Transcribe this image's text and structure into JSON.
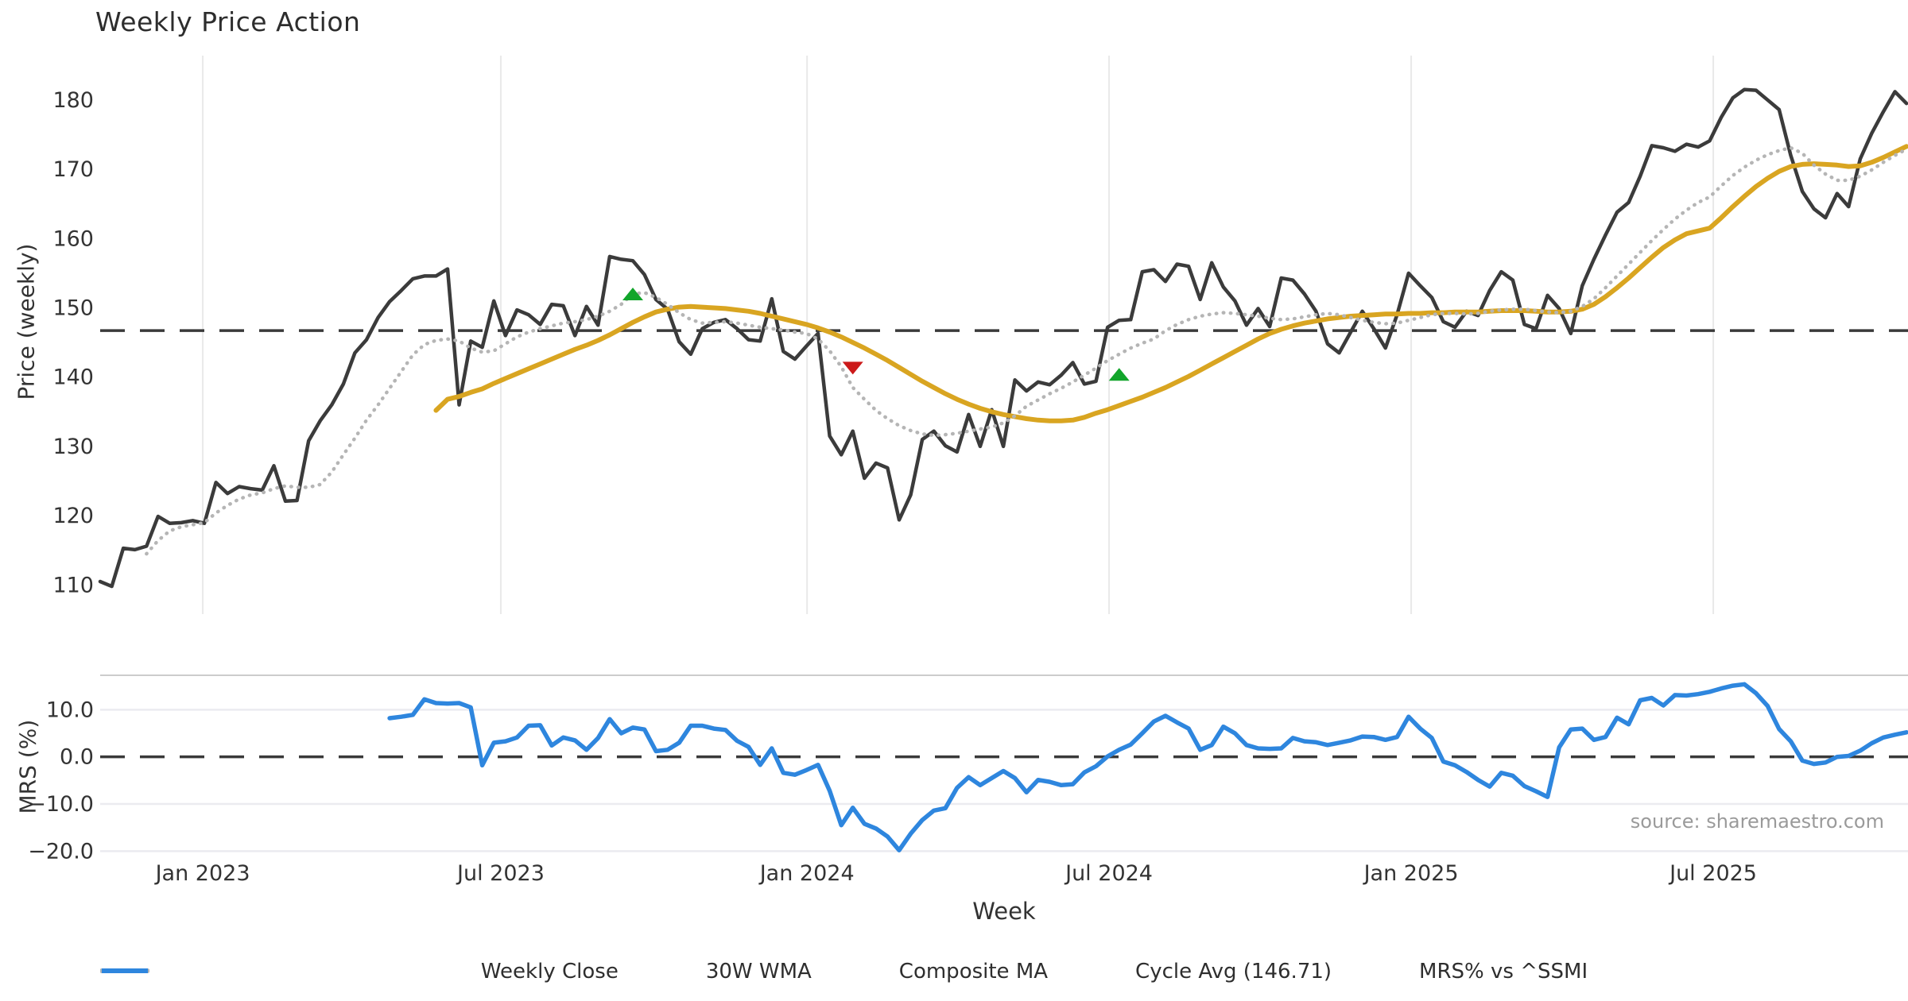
{
  "title": "Weekly Price Action",
  "source_text": "source: sharemaestro.com",
  "axes": {
    "price_axis_label": "Price (weekly)",
    "mrs_axis_label": "MRS (%)",
    "x_axis_label": "Week",
    "price_ticks": [
      110,
      120,
      130,
      140,
      150,
      160,
      170,
      180
    ],
    "mrs_ticks": [
      {
        "value": 10,
        "label": "10.0"
      },
      {
        "value": 0,
        "label": "0.0"
      },
      {
        "value": -10,
        "label": "−10.0"
      },
      {
        "value": -20,
        "label": "−20.0"
      }
    ],
    "x_ticks": [
      {
        "week": 8.86,
        "label": "Jan 2023"
      },
      {
        "week": 34.6,
        "label": "Jul 2023"
      },
      {
        "week": 61.05,
        "label": "Jan 2024"
      },
      {
        "week": 87.13,
        "label": "Jul 2024"
      },
      {
        "week": 113.22,
        "label": "Jan 2025"
      },
      {
        "week": 139.31,
        "label": "Jul 2025"
      }
    ]
  },
  "colors": {
    "close": "#3b3b3b",
    "wma": "#D9A521",
    "composite": "#b5b5b5",
    "cycle_avg": "#3a3a3a",
    "mrs": "#2E86DE",
    "buy_marker": "#12A52B",
    "sell_marker": "#CC1A1A",
    "grid": "#e9e9e9",
    "spine": "#cccccc",
    "mrs_grid": "#ebebf0",
    "tick_text": "#333333"
  },
  "legend": [
    {
      "label": "Weekly Close",
      "color": "#3b3b3b",
      "style": "solid"
    },
    {
      "label": "30W WMA",
      "color": "#D9A521",
      "style": "solid"
    },
    {
      "label": "Composite MA",
      "color": "#b5b5b5",
      "style": "dotted"
    },
    {
      "label": "Cycle Avg (146.71)",
      "color": "#3a3a3a",
      "style": "dashed"
    },
    {
      "label": "MRS% vs ^SSMI",
      "color": "#2E86DE",
      "style": "solid"
    }
  ],
  "chart_data": {
    "type": "line",
    "title": "Weekly Price Action",
    "xlabel": "Week",
    "x_unit": "week_index_from_2022-10-31",
    "panels": [
      {
        "id": "price",
        "ylabel": "Price (weekly)",
        "ylim": [
          105.8,
          186.4
        ],
        "grid": "vertical"
      },
      {
        "id": "mrs",
        "ylabel": "MRS (%)",
        "ylim": [
          -22.3,
          17.3
        ],
        "grid": "horizontal"
      }
    ],
    "cycle_avg": 146.71,
    "mrs_zero_line": 0,
    "series": [
      {
        "name": "Weekly Close",
        "panel": "price",
        "style": "solid",
        "color": "#3b3b3b",
        "width": 4.5,
        "start_week": 0,
        "values": [
          110.5,
          109.8,
          115.3,
          115.1,
          115.6,
          119.9,
          118.9,
          119.0,
          119.3,
          118.9,
          124.8,
          123.2,
          124.2,
          123.9,
          123.7,
          127.2,
          122.1,
          122.2,
          130.8,
          133.7,
          136.0,
          139.0,
          143.5,
          145.4,
          148.6,
          150.9,
          152.5,
          154.2,
          154.6,
          154.6,
          155.6,
          136.0,
          145.2,
          144.3,
          151.0,
          146.0,
          149.7,
          149.0,
          147.6,
          150.5,
          150.3,
          146.0,
          150.2,
          147.5,
          157.4,
          157.0,
          156.8,
          154.8,
          151.2,
          149.8,
          145.1,
          143.3,
          147.0,
          147.9,
          148.3,
          147.0,
          145.4,
          145.2,
          151.3,
          143.7,
          142.6,
          144.5,
          146.3,
          131.5,
          128.8,
          132.2,
          125.4,
          127.6,
          126.9,
          119.4,
          123.0,
          131.0,
          132.2,
          130.1,
          129.2,
          134.6,
          130.0,
          135.3,
          130.0,
          139.6,
          138.0,
          139.3,
          138.9,
          140.3,
          142.1,
          139.0,
          139.4,
          147.2,
          148.2,
          148.3,
          155.2,
          155.5,
          153.8,
          156.3,
          156.0,
          151.2,
          156.5,
          153.0,
          151.0,
          147.5,
          149.9,
          147.3,
          154.3,
          154.0,
          152.0,
          149.5,
          144.8,
          143.5,
          146.5,
          149.5,
          147.0,
          144.2,
          149.0,
          155.0,
          153.2,
          151.5,
          148.0,
          147.2,
          149.5,
          148.9,
          152.5,
          155.2,
          154.0,
          147.6,
          147.0,
          151.8,
          149.9,
          146.3,
          153.2,
          157.0,
          160.5,
          163.8,
          165.2,
          169.0,
          173.4,
          173.1,
          172.6,
          173.6,
          173.2,
          174.1,
          177.5,
          180.3,
          181.5,
          181.4,
          180.0,
          178.6,
          172.0,
          166.8,
          164.3,
          163.0,
          166.5,
          164.6,
          171.5,
          175.2,
          178.3,
          181.2,
          179.5
        ]
      },
      {
        "name": "30W WMA",
        "panel": "price",
        "style": "solid",
        "color": "#D9A521",
        "width": 6,
        "start_week": 29,
        "values": [
          135.2,
          136.8,
          137.2,
          137.8,
          138.3,
          139.1,
          139.8,
          140.5,
          141.2,
          141.9,
          142.6,
          143.3,
          144.0,
          144.6,
          145.3,
          146.1,
          147.0,
          147.9,
          148.7,
          149.4,
          149.8,
          150.1,
          150.2,
          150.1,
          150.0,
          149.9,
          149.7,
          149.5,
          149.2,
          148.8,
          148.4,
          148.0,
          147.6,
          147.1,
          146.5,
          145.8,
          145.0,
          144.2,
          143.3,
          142.4,
          141.4,
          140.4,
          139.4,
          138.5,
          137.6,
          136.8,
          136.1,
          135.5,
          135.0,
          134.6,
          134.3,
          134.0,
          133.8,
          133.7,
          133.7,
          133.8,
          134.2,
          134.8,
          135.3,
          135.9,
          136.5,
          137.1,
          137.8,
          138.5,
          139.3,
          140.1,
          141.0,
          141.9,
          142.8,
          143.7,
          144.6,
          145.5,
          146.3,
          146.9,
          147.4,
          147.8,
          148.1,
          148.4,
          148.6,
          148.8,
          148.9,
          149.0,
          149.1,
          149.1,
          149.2,
          149.2,
          149.3,
          149.3,
          149.4,
          149.4,
          149.4,
          149.5,
          149.6,
          149.6,
          149.6,
          149.5,
          149.4,
          149.4,
          149.5,
          149.8,
          150.5,
          151.6,
          152.9,
          154.3,
          155.8,
          157.3,
          158.7,
          159.8,
          160.7,
          161.1,
          161.5,
          163.0,
          164.6,
          166.1,
          167.5,
          168.7,
          169.7,
          170.4,
          170.7,
          170.8,
          170.7,
          170.6,
          170.4,
          170.5,
          171.0,
          171.7,
          172.5,
          173.3
        ]
      },
      {
        "name": "Composite MA",
        "panel": "price",
        "style": "dotted",
        "color": "#b5b5b5",
        "width": 4,
        "start_week": 4,
        "values": [
          114.5,
          116.4,
          117.8,
          118.4,
          118.7,
          119.0,
          120.4,
          121.5,
          122.4,
          123.0,
          123.3,
          123.9,
          124.3,
          124.1,
          124.1,
          124.5,
          126.3,
          128.8,
          131.2,
          133.8,
          136.0,
          138.4,
          140.8,
          143.2,
          144.7,
          145.3,
          145.5,
          145.2,
          144.2,
          143.6,
          143.8,
          144.8,
          145.8,
          146.5,
          147.0,
          147.4,
          147.8,
          148.0,
          148.3,
          148.8,
          149.5,
          150.5,
          152.0,
          152.2,
          151.5,
          150.5,
          149.3,
          148.3,
          147.8,
          147.9,
          148.0,
          147.8,
          147.5,
          147.2,
          147.0,
          146.8,
          146.5,
          146.3,
          145.5,
          143.8,
          141.5,
          138.5,
          136.8,
          135.2,
          134.0,
          133.0,
          132.3,
          131.8,
          131.6,
          131.7,
          131.9,
          132.2,
          132.5,
          132.8,
          133.4,
          134.4,
          135.8,
          136.7,
          137.6,
          138.4,
          139.3,
          140.3,
          141.3,
          142.4,
          143.3,
          144.2,
          144.9,
          145.5,
          146.7,
          147.6,
          148.3,
          148.8,
          149.1,
          149.3,
          149.2,
          149.0,
          148.8,
          148.5,
          148.3,
          148.4,
          148.7,
          149.0,
          149.2,
          149.0,
          148.6,
          148.2,
          147.9,
          147.7,
          147.8,
          148.2,
          148.6,
          149.0,
          149.2,
          149.2,
          149.1,
          149.2,
          149.5,
          149.7,
          149.8,
          149.8,
          149.6,
          149.4,
          149.3,
          149.5,
          150.2,
          151.3,
          152.9,
          154.6,
          156.3,
          158.0,
          159.7,
          161.3,
          162.8,
          164.1,
          165.2,
          166.0,
          167.6,
          169.1,
          170.3,
          171.3,
          172.1,
          172.7,
          173.1,
          172.3,
          170.6,
          169.3,
          168.4,
          168.4,
          169.0,
          169.9,
          171.0,
          172.0,
          172.9
        ]
      },
      {
        "name": "MRS% vs ^SSMI",
        "panel": "mrs",
        "style": "solid",
        "color": "#2E86DE",
        "width": 5.5,
        "start_week": 25,
        "values": [
          8.2,
          8.5,
          8.9,
          12.2,
          11.4,
          11.3,
          11.4,
          10.5,
          -1.8,
          3.0,
          3.3,
          4.1,
          6.6,
          6.7,
          2.4,
          4.1,
          3.5,
          1.5,
          4.0,
          8.0,
          5.0,
          6.2,
          5.8,
          1.2,
          1.5,
          3.0,
          6.6,
          6.6,
          6.0,
          5.7,
          3.4,
          2.1,
          -1.7,
          1.8,
          -3.4,
          -3.8,
          -2.8,
          -1.7,
          -7.2,
          -14.5,
          -10.8,
          -14.2,
          -15.2,
          -16.9,
          -19.8,
          -16.3,
          -13.4,
          -11.4,
          -10.9,
          -6.6,
          -4.3,
          -6.0,
          -4.5,
          -3.0,
          -4.5,
          -7.5,
          -4.9,
          -5.3,
          -6.0,
          -5.8,
          -3.3,
          -2.0,
          0.1,
          1.5,
          2.6,
          5.0,
          7.5,
          8.7,
          7.3,
          6.0,
          1.5,
          2.5,
          6.4,
          5.0,
          2.5,
          1.8,
          1.7,
          1.8,
          4.0,
          3.3,
          3.1,
          2.5,
          3.0,
          3.5,
          4.3,
          4.2,
          3.6,
          4.2,
          8.5,
          6.0,
          4.0,
          -1.0,
          -1.8,
          -3.2,
          -4.9,
          -6.3,
          -3.4,
          -4.0,
          -6.2,
          -7.3,
          -8.5,
          2.0,
          5.8,
          6.0,
          3.6,
          4.2,
          8.3,
          6.9,
          12.0,
          12.5,
          10.9,
          13.1,
          13.0,
          13.3,
          13.8,
          14.5,
          15.1,
          15.4,
          13.5,
          10.8,
          5.9,
          3.3,
          -0.8,
          -1.5,
          -1.2,
          0.0,
          0.2,
          1.3,
          2.9,
          4.1,
          4.7,
          5.2
        ]
      }
    ],
    "markers": [
      {
        "week": 46,
        "value": 152.0,
        "type": "buy",
        "shape": "triangle-up",
        "color": "#12A52B"
      },
      {
        "week": 65,
        "value": 141.3,
        "type": "sell",
        "shape": "triangle-down",
        "color": "#CC1A1A"
      },
      {
        "week": 88,
        "value": 140.4,
        "type": "buy",
        "shape": "triangle-up",
        "color": "#12A52B"
      }
    ],
    "legend_position": "bottom-center",
    "x_tick_labels": [
      "Jan 2023",
      "Jul 2023",
      "Jan 2024",
      "Jul 2024",
      "Jan 2025",
      "Jul 2025"
    ]
  }
}
